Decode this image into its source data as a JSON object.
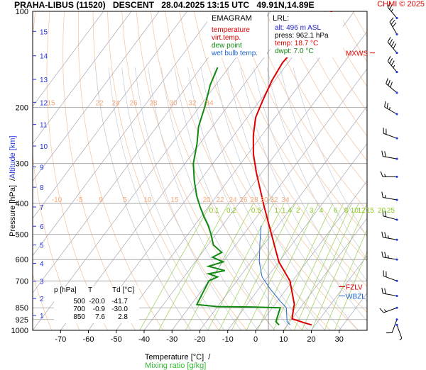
{
  "header": {
    "title": "PRAHA-LIBUS (11520)   DESCENT   28.04.2025 13:15 UTC   49.91N,14.89E",
    "credit": "CHMI © 2025"
  },
  "legend_box": {
    "title": "EMAGRAM",
    "items": [
      {
        "label": "temperature",
        "color": "#dd0000"
      },
      {
        "label": "virt.temp.",
        "color": "#dd0000"
      },
      {
        "label": "dew point",
        "color": "#118811"
      },
      {
        "label": "wet bulb temp.",
        "color": "#2266cc"
      }
    ]
  },
  "lrl_box": {
    "title": "LRL:",
    "lines": [
      {
        "text": "alt: 496 m ASL",
        "color": "#2222cc"
      },
      {
        "text": "press: 962.1 hPa",
        "color": "#000000"
      },
      {
        "text": "temp: 18.7 °C",
        "color": "#dd0000"
      },
      {
        "text": "dwpt: 7.0 °C",
        "color": "#118811"
      }
    ]
  },
  "table": {
    "headers": [
      "p [hPa]",
      "T",
      "Td [°C]"
    ],
    "rows": [
      [
        "500",
        "-20.0",
        "-41.7"
      ],
      [
        "700",
        "-0.9",
        "-30.0"
      ],
      [
        "850",
        "7.6",
        "2.8"
      ]
    ]
  },
  "axis_labels": {
    "x_black": "Temperature [°C]  /",
    "x_green": "Mixing ratio [g/kg]",
    "y_black": "Pressure [hPa]  /",
    "y_blue": "Altitude [km]"
  },
  "annotations": [
    {
      "text": "MXWS",
      "color": "#dd0000"
    },
    {
      "text": "FZLV",
      "color": "#dd0000"
    },
    {
      "text": "WBZL",
      "color": "#2266cc"
    }
  ],
  "mixing_ratio_labels": [
    {
      "text": "0.1",
      "color": "#88cc22",
      "row": 1
    },
    {
      "text": "0.2",
      "color": "#88cc22",
      "row": 1
    },
    {
      "text": "0.5",
      "color": "#88cc22",
      "row": 1
    },
    {
      "text": "1",
      "color": "#88cc22",
      "row": 1
    },
    {
      "text": "1.4",
      "color": "#88cc22",
      "row": 1
    },
    {
      "text": "2",
      "color": "#88cc22",
      "row": 1
    },
    {
      "text": "3",
      "color": "#88cc22",
      "row": 1
    },
    {
      "text": "4",
      "color": "#88cc22",
      "row": 1
    },
    {
      "text": "6",
      "color": "#88cc22",
      "row": 1
    },
    {
      "text": "8",
      "color": "#88cc22",
      "row": 1
    },
    {
      "text": "10",
      "color": "#88cc22",
      "row": 1
    },
    {
      "text": "12",
      "color": "#88cc22",
      "row": 1
    },
    {
      "text": "15",
      "color": "#88cc22",
      "row": 1
    },
    {
      "text": "20",
      "color": "#88cc22",
      "row": 1
    },
    {
      "text": "25",
      "color": "#88cc22",
      "row": 1
    }
  ],
  "theta_labels": [
    {
      "text": "-10",
      "row": "400"
    },
    {
      "text": "-5",
      "row": "400"
    },
    {
      "text": "9",
      "row": "400"
    },
    {
      "text": "5",
      "row": "400"
    },
    {
      "text": "10",
      "row": "400"
    },
    {
      "text": "15",
      "row": "400"
    },
    {
      "text": "20",
      "row": "400"
    },
    {
      "text": "22",
      "row": "400"
    },
    {
      "text": "24",
      "row": "400"
    },
    {
      "text": "26",
      "row": "400"
    },
    {
      "text": "28",
      "row": "400"
    },
    {
      "text": "30",
      "row": "400"
    },
    {
      "text": "32",
      "row": "400"
    },
    {
      "text": "34",
      "row": "400"
    },
    {
      "text": "15",
      "row": "200"
    },
    {
      "text": "22",
      "row": "200"
    },
    {
      "text": "24",
      "row": "200"
    },
    {
      "text": "26",
      "row": "200"
    },
    {
      "text": "28",
      "row": "200"
    },
    {
      "text": "30",
      "row": "200"
    },
    {
      "text": "32",
      "row": "200"
    },
    {
      "text": "34",
      "row": "200"
    }
  ],
  "chart_data": {
    "type": "line",
    "x_ticks": [
      -70,
      -60,
      -50,
      -40,
      -30,
      -20,
      -10,
      0,
      10,
      20,
      30
    ],
    "y_ticks": [
      100,
      200,
      300,
      400,
      500,
      600,
      700,
      850,
      925,
      1000
    ],
    "altitude_ticks": [
      "1",
      "2",
      "3",
      "4",
      "5",
      "6",
      "7",
      "8",
      "9",
      "10",
      "11",
      "12",
      "13",
      "14",
      "15",
      "16"
    ],
    "altitude_km": [
      1,
      2,
      3,
      4,
      5,
      6,
      7,
      8,
      9,
      10,
      11,
      12,
      13,
      14,
      15,
      16
    ],
    "xlim": [
      -80,
      40
    ],
    "ylim": [
      1000,
      100
    ],
    "yscale": "log",
    "series": [
      {
        "name": "temperature",
        "color": "#dd0000",
        "points": [
          [
            18.7,
            962
          ],
          [
            15,
            945
          ],
          [
            10,
            920
          ],
          [
            7.6,
            850
          ],
          [
            7,
            830
          ],
          [
            -0.9,
            700
          ],
          [
            -10,
            610
          ],
          [
            -20,
            500
          ],
          [
            -30,
            410
          ],
          [
            -42,
            320
          ],
          [
            -48,
            280
          ],
          [
            -53,
            245
          ],
          [
            -57,
            215
          ],
          [
            -59,
            190
          ],
          [
            -61,
            165
          ],
          [
            -62,
            145
          ],
          [
            -61,
            125
          ],
          [
            -60,
            110
          ],
          [
            -58,
            100
          ]
        ]
      },
      {
        "name": "dew point",
        "color": "#118811",
        "points": [
          [
            7,
            962
          ],
          [
            5,
            940
          ],
          [
            2.8,
            850
          ],
          [
            -8,
            845
          ],
          [
            -20,
            843
          ],
          [
            -28,
            830
          ],
          [
            -30,
            700
          ],
          [
            -28,
            680
          ],
          [
            -32,
            665
          ],
          [
            -27,
            650
          ],
          [
            -34,
            630
          ],
          [
            -30,
            610
          ],
          [
            -35,
            590
          ],
          [
            -33,
            570
          ],
          [
            -38,
            540
          ],
          [
            -41.7,
            500
          ],
          [
            -45,
            470
          ],
          [
            -49,
            440
          ],
          [
            -53,
            410
          ],
          [
            -57,
            380
          ],
          [
            -62,
            340
          ],
          [
            -67,
            300
          ],
          [
            -71,
            260
          ],
          [
            -75,
            230
          ],
          [
            -78,
            200
          ],
          [
            -82,
            170
          ],
          [
            -84,
            150
          ]
        ]
      },
      {
        "name": "wet bulb temp.",
        "color": "#2266cc",
        "points": [
          [
            11,
            962
          ],
          [
            9,
            940
          ],
          [
            5,
            850
          ],
          [
            1,
            810
          ],
          [
            -6,
            740
          ],
          [
            -12,
            680
          ],
          [
            -17,
            610
          ],
          [
            -22,
            530
          ],
          [
            -26,
            470
          ]
        ]
      }
    ]
  },
  "winds": [
    {
      "p": 962,
      "dir": 160,
      "spd": 5
    },
    {
      "p": 925,
      "dir": 200,
      "spd": 10
    },
    {
      "p": 850,
      "dir": 250,
      "spd": 15
    },
    {
      "p": 780,
      "dir": 280,
      "spd": 20
    },
    {
      "p": 700,
      "dir": 290,
      "spd": 20
    },
    {
      "p": 600,
      "dir": 280,
      "spd": 25
    },
    {
      "p": 520,
      "dir": 280,
      "spd": 25
    },
    {
      "p": 450,
      "dir": 285,
      "spd": 20
    },
    {
      "p": 390,
      "dir": 280,
      "spd": 15
    },
    {
      "p": 330,
      "dir": 270,
      "spd": 15
    },
    {
      "p": 290,
      "dir": 280,
      "spd": 20
    },
    {
      "p": 250,
      "dir": 290,
      "spd": 20
    },
    {
      "p": 210,
      "dir": 300,
      "spd": 25
    },
    {
      "p": 180,
      "dir": 310,
      "spd": 30
    },
    {
      "p": 155,
      "dir": 320,
      "spd": 35
    },
    {
      "p": 135,
      "dir": 320,
      "spd": 40
    },
    {
      "p": 118,
      "dir": 330,
      "spd": 30
    },
    {
      "p": 105,
      "dir": 320,
      "spd": 25
    }
  ]
}
